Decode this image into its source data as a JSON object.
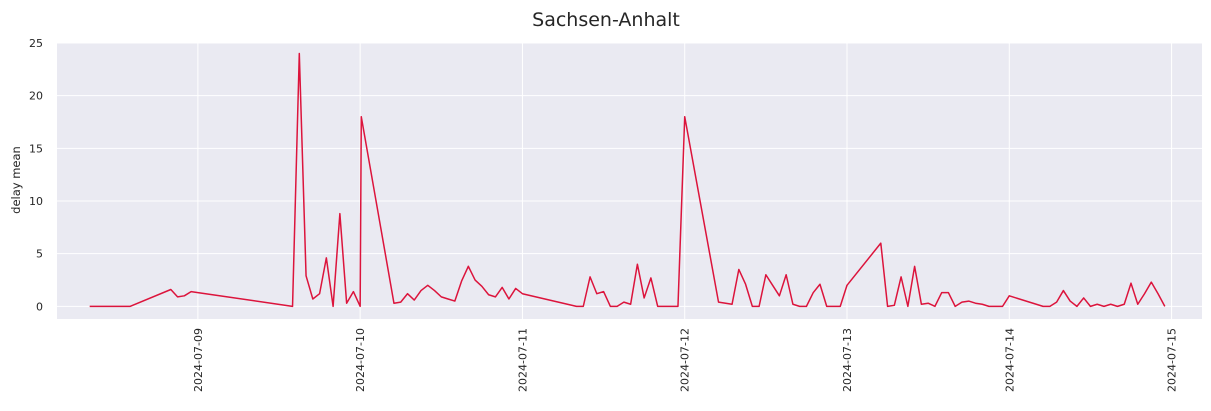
{
  "chart_data": {
    "type": "line",
    "title": "Sachsen-Anhalt",
    "xlabel": "",
    "ylabel": "delay mean",
    "ylim": [
      -1.2,
      25
    ],
    "y_ticks": [
      0,
      5,
      10,
      15,
      20,
      25
    ],
    "x_ticks": [
      "2024-07-09",
      "2024-07-10",
      "2024-07-11",
      "2024-07-12",
      "2024-07-13",
      "2024-07-14",
      "2024-07-15"
    ],
    "xlim": [
      "2024-07-08 03:10",
      "2024-07-15 04:30"
    ],
    "grid": true,
    "legend": "none",
    "colors": {
      "line": "#dc143c",
      "plot_bg": "#eaeaf2",
      "grid": "#ffffff"
    },
    "series": [
      {
        "x": [
          "2024-07-08 08:00",
          "2024-07-08 14:00",
          "2024-07-08 20:00",
          "2024-07-08 21:00",
          "2024-07-08 22:00",
          "2024-07-08 23:00",
          "2024-07-09 00:00",
          "2024-07-09 14:00",
          "2024-07-09 15:00",
          "2024-07-09 16:00",
          "2024-07-09 17:00",
          "2024-07-09 18:00",
          "2024-07-09 19:00",
          "2024-07-09 20:00",
          "2024-07-09 21:00",
          "2024-07-09 22:00",
          "2024-07-09 23:00",
          "2024-07-10 00:00",
          "2024-07-10 00:10",
          "2024-07-10 05:00",
          "2024-07-10 06:00",
          "2024-07-10 07:00",
          "2024-07-10 08:00",
          "2024-07-10 09:00",
          "2024-07-10 10:00",
          "2024-07-10 11:00",
          "2024-07-10 12:00",
          "2024-07-10 13:00",
          "2024-07-10 14:00",
          "2024-07-10 15:00",
          "2024-07-10 16:00",
          "2024-07-10 17:00",
          "2024-07-10 18:00",
          "2024-07-10 19:00",
          "2024-07-10 20:00",
          "2024-07-10 21:00",
          "2024-07-10 22:00",
          "2024-07-10 23:00",
          "2024-07-11 00:00",
          "2024-07-11 08:00",
          "2024-07-11 09:00",
          "2024-07-11 10:00",
          "2024-07-11 11:00",
          "2024-07-11 12:00",
          "2024-07-11 13:00",
          "2024-07-11 14:00",
          "2024-07-11 15:00",
          "2024-07-11 16:00",
          "2024-07-11 17:00",
          "2024-07-11 18:00",
          "2024-07-11 19:00",
          "2024-07-11 20:00",
          "2024-07-11 21:00",
          "2024-07-11 22:00",
          "2024-07-11 23:00",
          "2024-07-12 00:00",
          "2024-07-12 05:00",
          "2024-07-12 07:00",
          "2024-07-12 08:00",
          "2024-07-12 09:00",
          "2024-07-12 10:00",
          "2024-07-12 11:00",
          "2024-07-12 12:00",
          "2024-07-12 13:00",
          "2024-07-12 14:00",
          "2024-07-12 15:00",
          "2024-07-12 16:00",
          "2024-07-12 17:00",
          "2024-07-12 18:00",
          "2024-07-12 19:00",
          "2024-07-12 20:00",
          "2024-07-12 21:00",
          "2024-07-12 22:00",
          "2024-07-12 23:00",
          "2024-07-13 00:00",
          "2024-07-13 05:00",
          "2024-07-13 06:00",
          "2024-07-13 07:00",
          "2024-07-13 08:00",
          "2024-07-13 09:00",
          "2024-07-13 10:00",
          "2024-07-13 11:00",
          "2024-07-13 12:00",
          "2024-07-13 13:00",
          "2024-07-13 14:00",
          "2024-07-13 15:00",
          "2024-07-13 16:00",
          "2024-07-13 17:00",
          "2024-07-13 18:00",
          "2024-07-13 19:00",
          "2024-07-13 20:00",
          "2024-07-13 21:00",
          "2024-07-13 22:00",
          "2024-07-13 23:00",
          "2024-07-14 00:00",
          "2024-07-14 05:00",
          "2024-07-14 06:00",
          "2024-07-14 07:00",
          "2024-07-14 08:00",
          "2024-07-14 09:00",
          "2024-07-14 10:00",
          "2024-07-14 11:00",
          "2024-07-14 12:00",
          "2024-07-14 13:00",
          "2024-07-14 14:00",
          "2024-07-14 15:00",
          "2024-07-14 16:00",
          "2024-07-14 17:00",
          "2024-07-14 18:00",
          "2024-07-14 19:00",
          "2024-07-14 20:00",
          "2024-07-14 21:00",
          "2024-07-14 22:00",
          "2024-07-14 23:00"
        ],
        "y": [
          0.0,
          0.0,
          1.6,
          0.9,
          1.0,
          1.4,
          1.3,
          0.0,
          24.0,
          2.9,
          0.7,
          1.2,
          4.6,
          0.0,
          8.8,
          0.3,
          1.4,
          0.0,
          18.0,
          0.3,
          0.4,
          1.2,
          0.6,
          1.5,
          2.0,
          1.5,
          0.9,
          0.7,
          0.5,
          2.4,
          3.8,
          2.5,
          1.9,
          1.1,
          0.9,
          1.8,
          0.7,
          1.7,
          1.2,
          0.0,
          0.0,
          2.8,
          1.2,
          1.4,
          0.0,
          0.0,
          0.4,
          0.2,
          4.0,
          0.8,
          2.7,
          0.0,
          0.0,
          0.0,
          0.0,
          18.0,
          0.4,
          0.2,
          3.5,
          2.1,
          0.0,
          0.0,
          3.0,
          2.0,
          1.0,
          3.0,
          0.2,
          0.0,
          0.0,
          1.3,
          2.1,
          0.0,
          0.0,
          0.0,
          2.0,
          6.0,
          0.0,
          0.1,
          2.8,
          0.0,
          3.8,
          0.2,
          0.3,
          0.0,
          1.3,
          1.3,
          0.0,
          0.4,
          0.5,
          0.3,
          0.2,
          0.0,
          0.0,
          0.0,
          1.0,
          0.0,
          0.0,
          0.4,
          1.5,
          0.5,
          0.0,
          0.8,
          0.0,
          0.2,
          0.0,
          0.2,
          0.0,
          0.2,
          2.2,
          0.2,
          1.2,
          2.3,
          1.2,
          0.0
        ]
      }
    ]
  }
}
